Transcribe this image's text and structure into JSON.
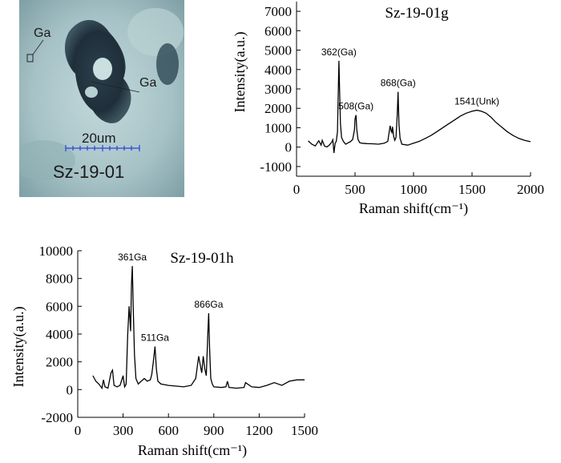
{
  "micrograph": {
    "sample_label": "Sz-19-01",
    "scale_label": "20um",
    "labels": [
      "Ga",
      "Ga"
    ],
    "colors": {
      "background": "#a9c3c6",
      "dark": "#1f2f3a",
      "scale": "#2f43d8"
    }
  },
  "chart_data": [
    {
      "type": "line",
      "title": "Sz-19-01g",
      "xlabel": "Raman shift(cm⁻¹)",
      "ylabel": "Intensity(a.u.)",
      "xlim": [
        0,
        2000
      ],
      "ylim": [
        -1500,
        7500
      ],
      "xticks": [
        0,
        500,
        1000,
        1500,
        2000
      ],
      "yticks": [
        -1000,
        0,
        1000,
        2000,
        3000,
        4000,
        5000,
        6000,
        7000
      ],
      "grid": false,
      "color": "#000000",
      "x": [
        100,
        130,
        160,
        190,
        210,
        220,
        240,
        260,
        280,
        300,
        310,
        320,
        330,
        340,
        350,
        355,
        362,
        368,
        375,
        385,
        400,
        420,
        440,
        460,
        480,
        495,
        500,
        508,
        515,
        525,
        540,
        560,
        600,
        650,
        700,
        750,
        780,
        790,
        800,
        810,
        815,
        820,
        825,
        830,
        840,
        850,
        860,
        868,
        875,
        885,
        900,
        950,
        1000,
        1050,
        1100,
        1150,
        1200,
        1250,
        1300,
        1350,
        1400,
        1450,
        1500,
        1541,
        1580,
        1620,
        1660,
        1700,
        1750,
        1800,
        1850,
        1900,
        1950,
        2000
      ],
      "y": [
        320,
        150,
        60,
        330,
        100,
        350,
        50,
        10,
        100,
        250,
        380,
        -300,
        200,
        300,
        800,
        2300,
        4450,
        3000,
        1200,
        500,
        300,
        150,
        220,
        280,
        400,
        900,
        1450,
        1650,
        900,
        400,
        230,
        200,
        180,
        170,
        150,
        200,
        300,
        700,
        1100,
        800,
        750,
        1050,
        850,
        550,
        350,
        500,
        1600,
        2850,
        1200,
        450,
        150,
        100,
        200,
        300,
        450,
        600,
        800,
        1000,
        1200,
        1400,
        1600,
        1750,
        1850,
        1900,
        1850,
        1750,
        1550,
        1300,
        1050,
        800,
        600,
        450,
        350,
        280
      ],
      "annotations": [
        {
          "text": "362(Ga)",
          "x": 362,
          "y": 4450
        },
        {
          "text": "508(Ga)",
          "x": 508,
          "y": 1650
        },
        {
          "text": "868(Ga)",
          "x": 868,
          "y": 2850
        },
        {
          "text": "1541(Unk)",
          "x": 1541,
          "y": 1900
        }
      ]
    },
    {
      "type": "line",
      "title": "Sz-19-01h",
      "xlabel": "Raman shift(cm⁻¹)",
      "ylabel": "Intensity(a.u.)",
      "xlim": [
        0,
        1500
      ],
      "ylim": [
        -2000,
        10000
      ],
      "xticks": [
        0,
        300,
        600,
        900,
        1200,
        1500
      ],
      "yticks": [
        -2000,
        0,
        2000,
        4000,
        6000,
        8000,
        10000
      ],
      "grid": false,
      "color": "#000000",
      "x": [
        100,
        120,
        140,
        160,
        170,
        180,
        200,
        220,
        230,
        240,
        260,
        280,
        300,
        310,
        320,
        330,
        340,
        350,
        355,
        361,
        367,
        375,
        385,
        400,
        420,
        440,
        460,
        480,
        490,
        500,
        511,
        520,
        530,
        550,
        600,
        650,
        700,
        750,
        780,
        800,
        810,
        820,
        830,
        840,
        850,
        860,
        866,
        872,
        880,
        890,
        900,
        950,
        980,
        990,
        1000,
        1050,
        1100,
        1110,
        1150,
        1200,
        1250,
        1300,
        1350,
        1400,
        1450,
        1500
      ],
      "y": [
        1000,
        600,
        400,
        100,
        700,
        200,
        100,
        1200,
        1400,
        300,
        200,
        300,
        1000,
        200,
        400,
        3900,
        6000,
        4200,
        7500,
        8900,
        6000,
        2500,
        800,
        400,
        600,
        800,
        600,
        700,
        1100,
        2000,
        3100,
        1500,
        600,
        400,
        300,
        250,
        200,
        300,
        800,
        2400,
        1800,
        1200,
        2400,
        1500,
        1000,
        4000,
        5500,
        3000,
        800,
        400,
        200,
        150,
        200,
        600,
        150,
        100,
        150,
        500,
        200,
        150,
        300,
        500,
        300,
        600,
        700,
        700
      ],
      "annotations": [
        {
          "text": "361Ga",
          "x": 361,
          "y": 8900
        },
        {
          "text": "511Ga",
          "x": 511,
          "y": 3100
        },
        {
          "text": "866Ga",
          "x": 866,
          "y": 5500
        }
      ]
    }
  ]
}
